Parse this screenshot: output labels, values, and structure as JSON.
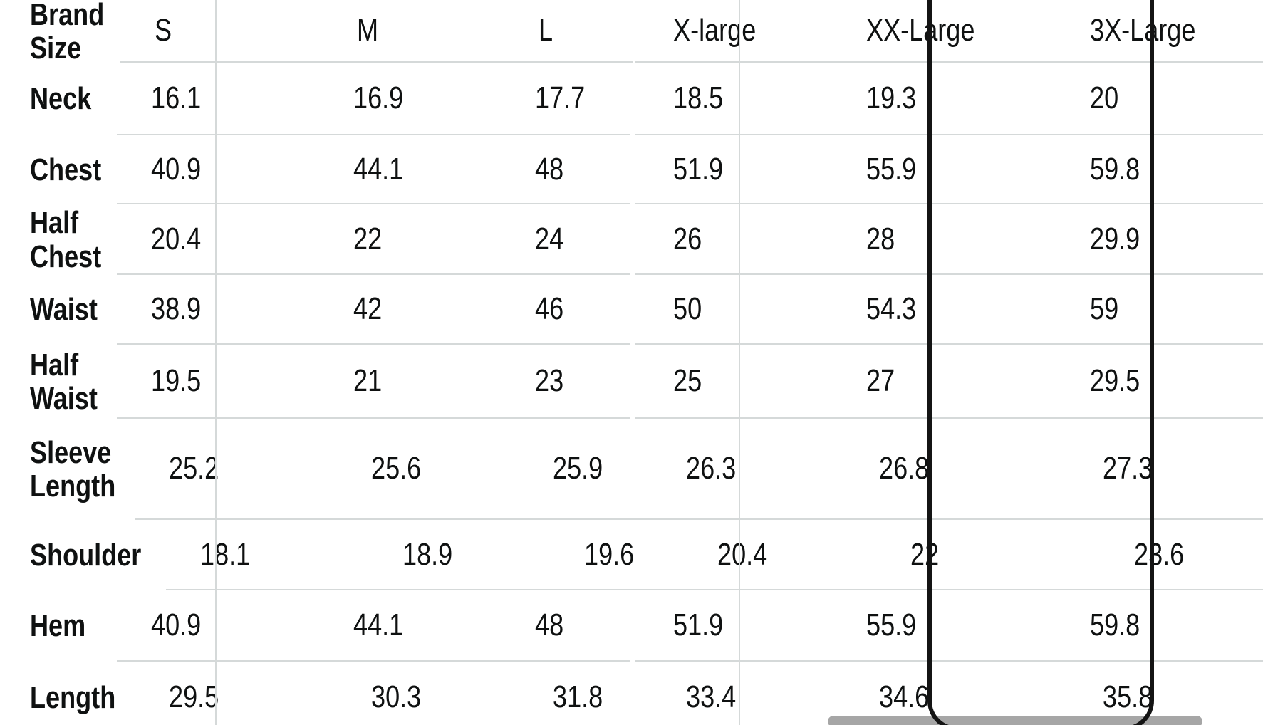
{
  "table": {
    "corner_label": "Brand Size",
    "size_headers": [
      "S",
      "M",
      "L",
      "X-large",
      "XX-Large",
      "3X-Large"
    ],
    "selected_size": "XX-Large",
    "rows": [
      {
        "label": "Neck",
        "values": [
          "16.1",
          "16.9",
          "17.7",
          "18.5",
          "19.3",
          "20"
        ]
      },
      {
        "label": "Chest",
        "values": [
          "40.9",
          "44.1",
          "48",
          "51.9",
          "55.9",
          "59.8"
        ]
      },
      {
        "label": "Half Chest",
        "values": [
          "20.4",
          "22",
          "24",
          "26",
          "28",
          "29.9"
        ]
      },
      {
        "label": "Waist",
        "values": [
          "38.9",
          "42",
          "46",
          "50",
          "54.3",
          "59"
        ]
      },
      {
        "label": "Half Waist",
        "values": [
          "19.5",
          "21",
          "23",
          "25",
          "27",
          "29.5"
        ]
      },
      {
        "label": "Sleeve Length",
        "values": [
          "25.2",
          "25.6",
          "25.9",
          "26.3",
          "26.8",
          "27.3"
        ]
      },
      {
        "label": "Shoulder",
        "values": [
          "18.1",
          "18.9",
          "19.6",
          "20.4",
          "22",
          "23.6"
        ]
      },
      {
        "label": "Hem",
        "values": [
          "40.9",
          "44.1",
          "48",
          "51.9",
          "55.9",
          "59.8"
        ]
      },
      {
        "label": "Length",
        "values": [
          "29.5",
          "30.3",
          "31.8",
          "33.4",
          "34.6",
          "35.8"
        ]
      }
    ]
  },
  "colors": {
    "text": "#0f1111",
    "grid_line": "#d5d9d9",
    "highlight_border": "#141414",
    "scrollbar_thumb": "#a6a6a6",
    "background": "#ffffff"
  }
}
